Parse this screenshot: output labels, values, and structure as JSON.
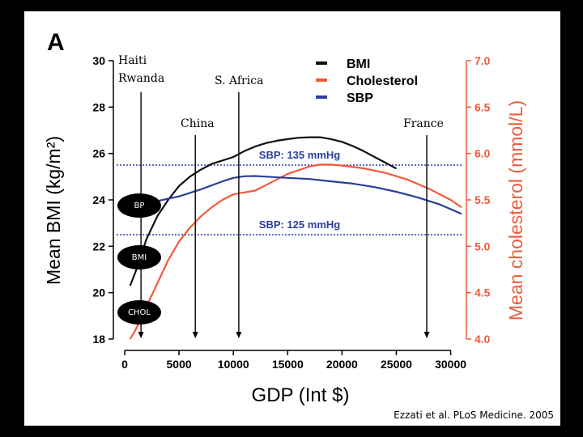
{
  "panel_label": "A",
  "citation": "Ezzati et al. PLoS Medicine. 2005",
  "annotations": {
    "haiti": "Haiti",
    "rwanda": "Rwanda",
    "s_africa": "S. Africa",
    "china": "China",
    "france": "France"
  },
  "markers": {
    "bp": "BP",
    "bmi": "BMI",
    "chol": "CHOL"
  },
  "colors": {
    "bmi": "#111111",
    "cholesterol": "#ef5a3a",
    "sbp": "#2a3f9a",
    "ref_line": "#2a3f9a",
    "background": "#000000"
  },
  "chart_data": {
    "type": "line",
    "xlabel": "GDP (Int $)",
    "ylabel": "Mean BMI (kg/m²)",
    "y2label": "Mean cholesterol (mmol/L)",
    "xlim": [
      0,
      31000
    ],
    "ylim": [
      18,
      30
    ],
    "y2lim": [
      4.0,
      7.0
    ],
    "xticks": [
      0,
      5000,
      10000,
      15000,
      20000,
      25000,
      30000
    ],
    "yticks": [
      18,
      20,
      22,
      24,
      26,
      28,
      30
    ],
    "y2ticks": [
      "4.0",
      "4.5",
      "5.0",
      "5.5",
      "6.0",
      "6.5",
      "7.0"
    ],
    "legend": [
      "BMI",
      "Cholesterol",
      "SBP"
    ],
    "legend_position": "top-right",
    "reference_lines": [
      {
        "label": "SBP: 135 mmHg",
        "y": 25.5
      },
      {
        "label": "SBP: 125 mmHg",
        "y": 22.5
      }
    ],
    "arrows": [
      {
        "label": "Haiti / Rwanda",
        "x": 1500
      },
      {
        "label": "China",
        "x": 6500
      },
      {
        "label": "S. Africa",
        "x": 10500
      },
      {
        "label": "France",
        "x": 27800
      }
    ],
    "series": [
      {
        "name": "BMI",
        "axis": "left",
        "x": [
          500,
          1000,
          1500,
          2000,
          3000,
          4000,
          5000,
          6000,
          7000,
          8000,
          9000,
          10000,
          11000,
          12000,
          13000,
          14000,
          15000,
          16000,
          17000,
          18000,
          19000,
          20000,
          21000,
          22000,
          23000,
          24000,
          25000
        ],
        "y": [
          20.3,
          20.9,
          21.6,
          22.3,
          23.3,
          24.0,
          24.6,
          25.0,
          25.3,
          25.55,
          25.7,
          25.85,
          26.1,
          26.3,
          26.45,
          26.55,
          26.62,
          26.68,
          26.7,
          26.7,
          26.62,
          26.5,
          26.32,
          26.1,
          25.85,
          25.6,
          25.35
        ]
      },
      {
        "name": "Cholesterol",
        "axis": "right",
        "x": [
          500,
          1000,
          2000,
          3000,
          4000,
          5000,
          6000,
          7000,
          8000,
          9000,
          10000,
          11000,
          12000,
          13000,
          14000,
          15000,
          16000,
          17000,
          18000,
          19000,
          20000,
          22000,
          24000,
          26000,
          28000,
          30000,
          31000
        ],
        "y": [
          4.0,
          4.1,
          4.35,
          4.6,
          4.85,
          5.05,
          5.2,
          5.32,
          5.42,
          5.5,
          5.56,
          5.58,
          5.6,
          5.66,
          5.72,
          5.78,
          5.82,
          5.86,
          5.88,
          5.88,
          5.87,
          5.84,
          5.79,
          5.72,
          5.62,
          5.5,
          5.42
        ]
      },
      {
        "name": "SBP",
        "axis": "left",
        "x": [
          1500,
          3000,
          5000,
          7000,
          9000,
          10000,
          11000,
          12000,
          13000,
          15000,
          17000,
          19000,
          21000,
          23000,
          25000,
          27000,
          29000,
          31000
        ],
        "y": [
          23.8,
          23.95,
          24.15,
          24.45,
          24.8,
          24.95,
          25.02,
          25.03,
          25.0,
          24.95,
          24.9,
          24.8,
          24.7,
          24.55,
          24.35,
          24.1,
          23.8,
          23.4
        ]
      }
    ]
  }
}
